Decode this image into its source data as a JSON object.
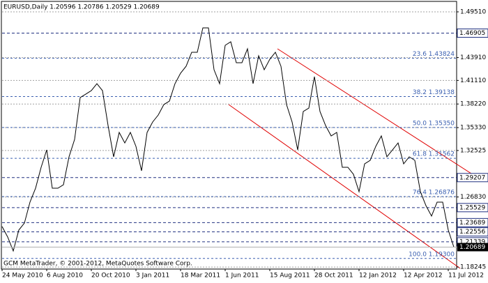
{
  "chart_data": {
    "type": "line",
    "title": "EURUSD,Daily  1.20596 1.20786 1.20529 1.20689",
    "footer": "GCM MetaTrader, © 2001-2012, MetaQuotes Software Corp.",
    "categories": [
      "24 May 2010",
      null,
      null,
      null,
      null,
      null,
      null,
      null,
      "6 Aug 2010",
      null,
      null,
      null,
      null,
      null,
      null,
      null,
      "20 Oct 2010",
      null,
      null,
      null,
      null,
      null,
      null,
      null,
      "3 Jan 2011",
      null,
      null,
      null,
      null,
      null,
      null,
      null,
      "18 Mar 2011",
      null,
      null,
      null,
      null,
      null,
      null,
      null,
      "1 Jun 2011",
      null,
      null,
      null,
      null,
      null,
      null,
      null,
      "15 Aug 2011",
      null,
      null,
      null,
      null,
      null,
      null,
      null,
      "28 Oct 2011",
      null,
      null,
      null,
      null,
      null,
      null,
      null,
      "12 Jan 2012",
      null,
      null,
      null,
      null,
      null,
      null,
      null,
      "12 Apr 2012",
      null,
      null,
      null,
      null,
      null,
      null,
      null,
      "11 Jul 2012",
      null
    ],
    "series": [
      {
        "name": "EURUSD",
        "color": "#000000",
        "values": [
          1.2321,
          1.2193,
          1.2022,
          1.2278,
          1.2363,
          1.262,
          1.279,
          1.3047,
          1.326,
          1.279,
          1.279,
          1.2833,
          1.3175,
          1.3388,
          1.3901,
          1.3943,
          1.3986,
          1.4071,
          1.3986,
          1.3559,
          1.3175,
          1.3474,
          1.3345,
          1.3474,
          1.3303,
          1.3004,
          1.3474,
          1.3602,
          1.3687,
          1.3815,
          1.3858,
          1.4071,
          1.4199,
          1.4285,
          1.4456,
          1.4456,
          1.4755,
          1.4755,
          1.4242,
          1.4071,
          1.4541,
          1.4584,
          1.4328,
          1.4328,
          1.4498,
          1.4071,
          1.4413,
          1.4242,
          1.437,
          1.4456,
          1.4285,
          1.3815,
          1.3602,
          1.326,
          1.373,
          1.3772,
          1.4157,
          1.373,
          1.3559,
          1.3431,
          1.3474,
          1.3047,
          1.3047,
          1.2961,
          1.2748,
          1.3089,
          1.3132,
          1.3303,
          1.3431,
          1.3175,
          1.326,
          1.3345,
          1.3089,
          1.3175,
          1.3132,
          1.2748,
          1.2577,
          1.2449,
          1.262,
          1.262,
          1.2278,
          1.20689
        ]
      }
    ],
    "ylim": [
      1.18,
      1.5079
    ],
    "yticks": [
      {
        "value": 1.4951,
        "label": "1.49510"
      },
      {
        "value": 1.4391,
        "label": "1.43910"
      },
      {
        "value": 1.4111,
        "label": "1.41110"
      },
      {
        "value": 1.3822,
        "label": "1.38220"
      },
      {
        "value": 1.3533,
        "label": "1.35330"
      },
      {
        "value": 1.32525,
        "label": "1.32525"
      },
      {
        "value": 1.2683,
        "label": "1.26830"
      },
      1.18245
    ],
    "price_levels": [
      1.46905,
      1.29207,
      1.25529,
      1.23689,
      1.22556,
      1.21339
    ],
    "current_price": 1.20689,
    "fib_levels": [
      {
        "value": 1.43824,
        "label": "23.6 1.43824"
      },
      {
        "value": 1.39138,
        "label": "38.2 1.39138"
      },
      {
        "value": 1.3535,
        "label": "50.0 1.35350"
      },
      {
        "value": 1.31562,
        "label": "61.8 1.31562"
      },
      {
        "value": 1.26876,
        "label": "76.4 1.26876"
      },
      {
        "value": 1.193,
        "label": "100.0 1.19300"
      }
    ],
    "grid": true
  }
}
